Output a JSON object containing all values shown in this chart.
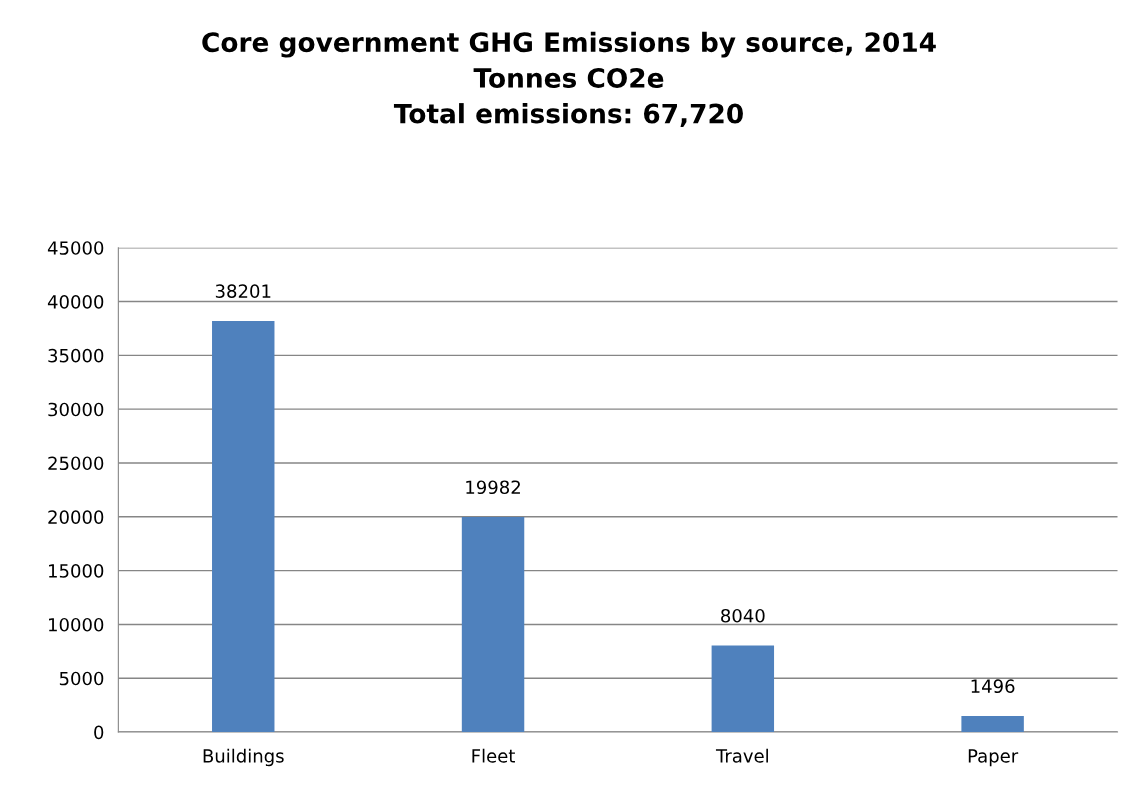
{
  "chart_data": {
    "type": "bar",
    "title": "Core government GHG Emissions by source, 2014\nTonnes CO2e\nTotal emissions: 67,720",
    "categories": [
      "Buildings",
      "Fleet",
      "Travel",
      "Paper"
    ],
    "values": [
      38201,
      19982,
      8040,
      1496
    ],
    "color": "#4f81bd",
    "ylim": [
      0,
      45000
    ],
    "yticks": [
      0,
      5000,
      10000,
      15000,
      20000,
      25000,
      30000,
      35000,
      40000,
      45000
    ],
    "grid": "y",
    "data_labels": true
  }
}
